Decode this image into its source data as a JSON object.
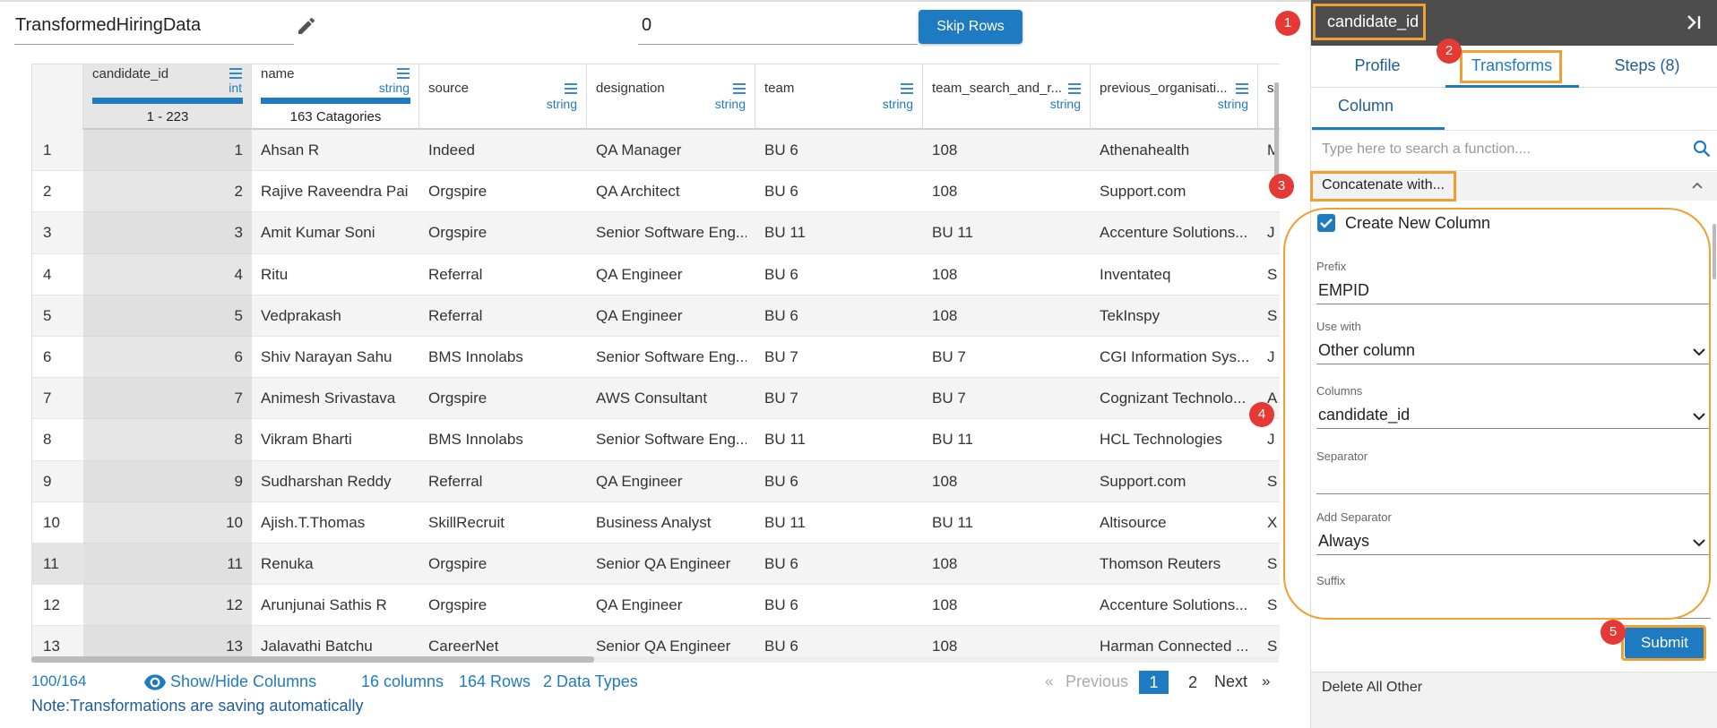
{
  "header": {
    "dataset_name": "TransformedHiringData",
    "skip_rows_input": "0",
    "skip_rows_button": "Skip Rows"
  },
  "table": {
    "columns": [
      {
        "name": "candidate_id",
        "type": "int",
        "summary": "1 - 223"
      },
      {
        "name": "name",
        "type": "string",
        "summary": "163 Catagories"
      },
      {
        "name": "source",
        "type": "string"
      },
      {
        "name": "designation",
        "type": "string"
      },
      {
        "name": "team",
        "type": "string"
      },
      {
        "name": "team_search_and_r...",
        "type": "string"
      },
      {
        "name": "previous_organisati...",
        "type": "string"
      },
      {
        "name": "s"
      }
    ],
    "row_numbers": [
      "1",
      "2",
      "3",
      "4",
      "5",
      "6",
      "7",
      "8",
      "9",
      "10",
      "11",
      "12",
      "13"
    ],
    "rows": [
      [
        "1",
        "Ahsan R",
        "Indeed",
        "QA Manager",
        "BU 6",
        "108",
        "Athenahealth",
        "M"
      ],
      [
        "2",
        "Rajive Raveendra Pai",
        "Orgspire",
        "QA Architect",
        "BU 6",
        "108",
        "Support.com",
        null
      ],
      [
        "3",
        "Amit Kumar Soni",
        "Orgspire",
        "Senior Software Eng...",
        "BU 11",
        "BU 11",
        "Accenture Solutions...",
        "J"
      ],
      [
        "4",
        "Ritu",
        "Referral",
        "QA Engineer",
        "BU 6",
        "108",
        "Inventateq",
        "S"
      ],
      [
        "5",
        "Vedprakash",
        "Referral",
        "QA Engineer",
        "BU 6",
        "108",
        "TekInspy",
        "S"
      ],
      [
        "6",
        "Shiv Narayan Sahu",
        "BMS Innolabs",
        "Senior Software Eng...",
        "BU 7",
        "BU 7",
        "CGI Information Sys...",
        "J"
      ],
      [
        "7",
        "Animesh Srivastava",
        "Orgspire",
        "AWS Consultant",
        "BU 7",
        "BU 7",
        "Cognizant Technolo...",
        "A"
      ],
      [
        "8",
        "Vikram Bharti",
        "BMS Innolabs",
        "Senior Software Eng...",
        "BU 11",
        "BU 11",
        "HCL Technologies",
        "J"
      ],
      [
        "9",
        "Sudharshan Reddy",
        "Referral",
        "QA Engineer",
        "BU 6",
        "108",
        "Support.com",
        "S"
      ],
      [
        "10",
        "Ajish.T.Thomas",
        "SkillRecruit",
        "Business Analyst",
        "BU 11",
        "BU 11",
        "Altisource",
        "X"
      ],
      [
        "11",
        "Renuka",
        "Orgspire",
        "Senior QA Engineer",
        "BU 6",
        "108",
        "Thomson Reuters",
        "S"
      ],
      [
        "12",
        "Arunjunai Sathis R",
        "Orgspire",
        "QA Engineer",
        "BU 6",
        "108",
        "Accenture Solutions...",
        "S"
      ],
      [
        "13",
        "Jalavathi Batchu",
        "CareerNet",
        "Senior QA Engineer",
        "BU 6",
        "108",
        "Harman Connected ...",
        "S"
      ]
    ]
  },
  "footer": {
    "page_count": "100/164",
    "show_hide_columns": "Show/Hide Columns",
    "columns_count": "16 columns",
    "rows_count": "164 Rows",
    "data_types": "2 Data Types",
    "pagination": {
      "first": "«",
      "previous": "Previous",
      "pages": [
        "1",
        "2"
      ],
      "next": "Next",
      "last": "»"
    },
    "note": "Note:Transformations are saving automatically"
  },
  "panel": {
    "title": "candidate_id",
    "tabs": [
      "Profile",
      "Transforms",
      "Steps (8)"
    ],
    "subtab": "Column",
    "search_placeholder": "Type here to search a function....",
    "section": "Concatenate with...",
    "checkbox_label": "Create New Column",
    "fields": [
      {
        "label": "Prefix",
        "value": "EMPID"
      },
      {
        "label": "Use with",
        "value": "Other column"
      },
      {
        "label": "Columns",
        "value": "candidate_id"
      },
      {
        "label": "Separator"
      },
      {
        "label": "Add Separator",
        "value": "Always"
      },
      {
        "label": "Suffix"
      }
    ],
    "submit": "Submit",
    "next_section": "Delete All Other"
  },
  "annotations": [
    "1",
    "2",
    "3",
    "4",
    "5"
  ]
}
